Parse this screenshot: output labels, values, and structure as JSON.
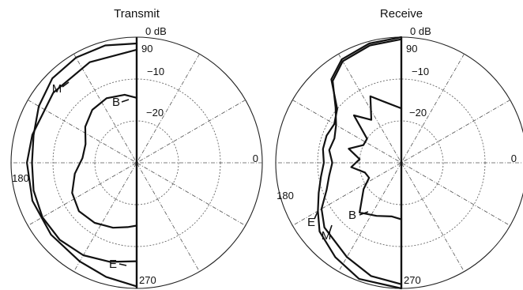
{
  "chart_data": [
    {
      "type": "polar",
      "title": "Transmit",
      "rscale": {
        "max_db": 0,
        "min_db": -30,
        "ring_step_db": 10
      },
      "radial_labels": [
        "0 dB",
        "−10",
        "−20"
      ],
      "angle_labels": [
        "0",
        "90",
        "180",
        "270"
      ],
      "grid": true,
      "series": [
        {
          "name": "M",
          "points": [
            [
              90,
              -1.5
            ],
            [
              105,
              -1.0
            ],
            [
              120,
              -1.0
            ],
            [
              135,
              -1.5
            ],
            [
              150,
              -3.0
            ],
            [
              165,
              -4.5
            ],
            [
              180,
              -5.0
            ],
            [
              195,
              -4.5
            ],
            [
              210,
              -4.0
            ],
            [
              225,
              -4.0
            ],
            [
              240,
              -4.5
            ],
            [
              255,
              -5.5
            ],
            [
              270,
              -6.5
            ]
          ]
        },
        {
          "name": "B",
          "points": [
            [
              90,
              -14.5
            ],
            [
              100,
              -13.5
            ],
            [
              115,
              -13.0
            ],
            [
              130,
              -13.5
            ],
            [
              145,
              -15.0
            ],
            [
              160,
              -17.0
            ],
            [
              175,
              -17.0
            ],
            [
              190,
              -15.0
            ],
            [
              205,
              -13.0
            ],
            [
              220,
              -12.0
            ],
            [
              235,
              -12.5
            ],
            [
              250,
              -13.5
            ],
            [
              262,
              -14.5
            ],
            [
              270,
              -15.0
            ]
          ]
        },
        {
          "name": "E",
          "points": [
            [
              90,
              -3.0
            ],
            [
              115,
              -3.5
            ],
            [
              140,
              -4.0
            ],
            [
              165,
              -4.2
            ],
            [
              180,
              -3.8
            ],
            [
              200,
              -3.5
            ],
            [
              220,
              -3.3
            ],
            [
              240,
              -2.8
            ],
            [
              255,
              -1.8
            ],
            [
              270,
              -0.5
            ]
          ]
        }
      ]
    },
    {
      "type": "polar",
      "title": "Receive",
      "rscale": {
        "max_db": 0,
        "min_db": -30,
        "ring_step_db": 10
      },
      "radial_labels": [
        "0 dB",
        "−10",
        "−20"
      ],
      "angle_labels": [
        "0",
        "90",
        "180",
        "270"
      ],
      "grid": true,
      "series": [
        {
          "name": "M",
          "points": [
            [
              90,
              0.0
            ],
            [
              105,
              -0.5
            ],
            [
              120,
              -1.5
            ],
            [
              130,
              -4.0
            ],
            [
              140,
              -10.0
            ],
            [
              150,
              -11.5
            ],
            [
              160,
              -11.0
            ],
            [
              170,
              -11.0
            ],
            [
              180,
              -11.5
            ],
            [
              190,
              -10.5
            ],
            [
              200,
              -9.0
            ],
            [
              210,
              -7.0
            ],
            [
              220,
              -4.5
            ],
            [
              235,
              -2.5
            ],
            [
              250,
              -0.5
            ],
            [
              270,
              0.0
            ]
          ]
        },
        {
          "name": "B",
          "points": [
            [
              90,
              -17.0
            ],
            [
              105,
              -15.0
            ],
            [
              115,
              -12.5
            ],
            [
              125,
              -17.5
            ],
            [
              135,
              -14.0
            ],
            [
              145,
              -20.0
            ],
            [
              155,
              -20.0
            ],
            [
              165,
              -17.0
            ],
            [
              175,
              -20.0
            ],
            [
              185,
              -18.0
            ],
            [
              195,
              -21.0
            ],
            [
              205,
              -21.5
            ],
            [
              215,
              -19.0
            ],
            [
              230,
              -14.5
            ],
            [
              245,
              -16.0
            ],
            [
              260,
              -17.0
            ],
            [
              270,
              -16.5
            ]
          ]
        },
        {
          "name": "E",
          "points": [
            [
              90,
              -0.5
            ],
            [
              105,
              -1.0
            ],
            [
              120,
              -2.0
            ],
            [
              130,
              -4.5
            ],
            [
              140,
              -9.5
            ],
            [
              150,
              -12.0
            ],
            [
              160,
              -13.0
            ],
            [
              170,
              -12.5
            ],
            [
              180,
              -13.5
            ],
            [
              190,
              -12.5
            ],
            [
              200,
              -11.0
            ],
            [
              210,
              -8.0
            ],
            [
              220,
              -6.0
            ],
            [
              240,
              -4.0
            ],
            [
              255,
              -2.0
            ],
            [
              270,
              -1.0
            ]
          ]
        }
      ]
    }
  ]
}
